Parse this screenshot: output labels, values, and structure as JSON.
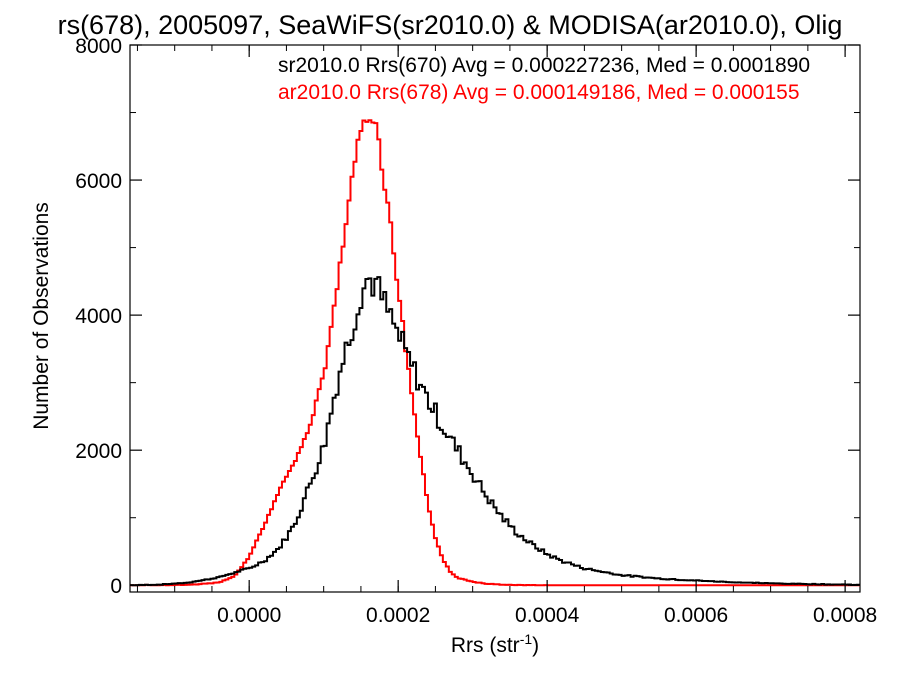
{
  "chart_data": {
    "type": "step",
    "title": "rs(678), 2005097, SeaWiFS(sr2010.0) & MODISA(ar2010.0), Olig",
    "xlabel": "Rrs (str",
    "xlabel_sup": "-1",
    "xlabel_close": ")",
    "ylabel": "Number of Observations",
    "xlim": [
      -0.00016,
      0.00082
    ],
    "ylim": [
      -100,
      8000
    ],
    "xticks": [
      0.0,
      0.0002,
      0.0004,
      0.0006,
      0.0008
    ],
    "xtick_labels": [
      "0.0000",
      "0.0002",
      "0.0004",
      "0.0006",
      "0.0008"
    ],
    "yticks": [
      0,
      2000,
      4000,
      6000,
      8000
    ],
    "ytick_labels": [
      "0",
      "2000",
      "4000",
      "6000",
      "8000"
    ],
    "bin_width": 4e-06,
    "legend": [
      {
        "text": "sr2010.0 Rrs(670) Avg = 0.000227236, Med = 0.0001890",
        "color": "#000000"
      },
      {
        "text": "ar2010.0 Rrs(678) Avg = 0.000149186, Med = 0.000155",
        "color": "#ff0000"
      }
    ],
    "series": [
      {
        "name": "sr2010.0 Rrs(670)",
        "color": "#000000",
        "points": [
          [
            -0.00016,
            0
          ],
          [
            -0.00012,
            10
          ],
          [
            -8e-05,
            40
          ],
          [
            -4e-05,
            120
          ],
          [
            0.0,
            250
          ],
          [
            2e-05,
            360
          ],
          [
            4e-05,
            550
          ],
          [
            6e-05,
            880
          ],
          [
            8e-05,
            1450
          ],
          [
            0.0001,
            2050
          ],
          [
            0.00012,
            3100
          ],
          [
            0.00014,
            3900
          ],
          [
            0.00015,
            4350
          ],
          [
            0.00016,
            4550
          ],
          [
            0.00017,
            4450
          ],
          [
            0.00018,
            4200
          ],
          [
            0.0002,
            3700
          ],
          [
            0.00022,
            3200
          ],
          [
            0.00024,
            2750
          ],
          [
            0.00026,
            2350
          ],
          [
            0.00028,
            2000
          ],
          [
            0.0003,
            1650
          ],
          [
            0.00032,
            1300
          ],
          [
            0.00034,
            1000
          ],
          [
            0.00036,
            770
          ],
          [
            0.00038,
            600
          ],
          [
            0.0004,
            460
          ],
          [
            0.00042,
            360
          ],
          [
            0.00045,
            250
          ],
          [
            0.0005,
            150
          ],
          [
            0.00055,
            100
          ],
          [
            0.0006,
            70
          ],
          [
            0.00065,
            45
          ],
          [
            0.0007,
            28
          ],
          [
            0.00075,
            18
          ],
          [
            0.0008,
            10
          ],
          [
            0.00082,
            5
          ]
        ]
      },
      {
        "name": "ar2010.0 Rrs(678)",
        "color": "#ff0000",
        "points": [
          [
            -0.00016,
            0
          ],
          [
            -8e-05,
            5
          ],
          [
            -4e-05,
            40
          ],
          [
            -2e-05,
            130
          ],
          [
            0.0,
            420
          ],
          [
            2e-05,
            880
          ],
          [
            4e-05,
            1400
          ],
          [
            6e-05,
            1800
          ],
          [
            8e-05,
            2300
          ],
          [
            0.0001,
            3100
          ],
          [
            0.00012,
            4600
          ],
          [
            0.00014,
            6200
          ],
          [
            0.00015,
            6800
          ],
          [
            0.00016,
            7000
          ],
          [
            0.00017,
            6800
          ],
          [
            0.00018,
            6100
          ],
          [
            0.00019,
            5300
          ],
          [
            0.0002,
            4400
          ],
          [
            0.00021,
            3500
          ],
          [
            0.00022,
            2700
          ],
          [
            0.00023,
            1900
          ],
          [
            0.00024,
            1200
          ],
          [
            0.00025,
            700
          ],
          [
            0.00026,
            380
          ],
          [
            0.00027,
            200
          ],
          [
            0.00028,
            110
          ],
          [
            0.0003,
            50
          ],
          [
            0.00032,
            20
          ],
          [
            0.00034,
            8
          ],
          [
            0.00036,
            2
          ],
          [
            0.0004,
            0
          ],
          [
            0.00082,
            0
          ]
        ]
      }
    ]
  }
}
